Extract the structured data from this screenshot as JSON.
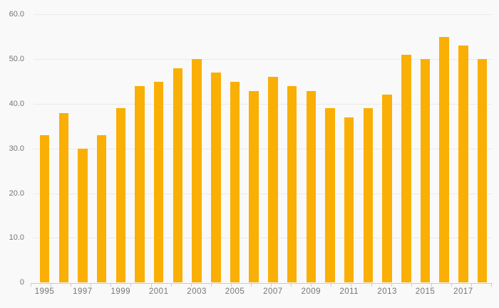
{
  "chart_data": {
    "type": "bar",
    "title": "",
    "xlabel": "",
    "ylabel": "",
    "categories": [
      "1995",
      "1996",
      "1997",
      "1998",
      "1999",
      "2000",
      "2001",
      "2002",
      "2003",
      "2004",
      "2005",
      "2006",
      "2007",
      "2008",
      "2009",
      "2010",
      "2011",
      "2012",
      "2013",
      "2014",
      "2015",
      "2016",
      "2017",
      "2018"
    ],
    "values": [
      33.0,
      38.0,
      30.0,
      33.0,
      39.0,
      44.0,
      45.0,
      48.0,
      50.0,
      47.0,
      45.0,
      42.9,
      46.0,
      44.0,
      42.9,
      39.0,
      37.0,
      39.0,
      42.0,
      51.0,
      50.0,
      55.0,
      53.0,
      50.0
    ],
    "ylim": [
      0,
      60
    ],
    "y_ticks": [
      0,
      10,
      20,
      30,
      40,
      50,
      60
    ],
    "y_tick_labels": [
      "0",
      "10.0",
      "20.0",
      "30.0",
      "40.0",
      "50.0",
      "60.0"
    ],
    "x_tick_labels": [
      "1995",
      "1997",
      "1999",
      "2001",
      "2003",
      "2005",
      "2007",
      "2009",
      "2011",
      "2013",
      "2015",
      "2017"
    ],
    "grid": "horizontal-only",
    "legend": false,
    "colors": {
      "bar": "#faaf05",
      "background": "#f9f9f9",
      "gridline": "#eaeaea",
      "axis": "#c3ccde",
      "label": "#757575"
    }
  }
}
